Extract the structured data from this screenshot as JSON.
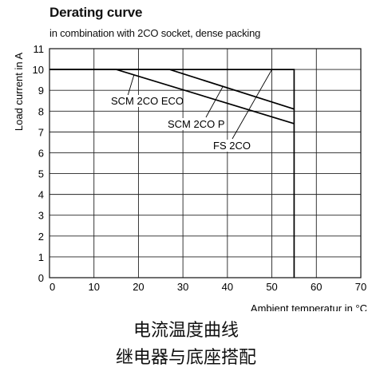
{
  "chart_data": {
    "type": "line",
    "title": "Derating curve",
    "subtitle": "in combination with 2CO socket, dense packing",
    "xlabel": "Ambient temperatur in °C",
    "ylabel": "Load  current in A",
    "xlim": [
      0,
      70
    ],
    "ylim": [
      0,
      11
    ],
    "x_ticks": [
      0,
      10,
      20,
      30,
      40,
      50,
      60,
      70
    ],
    "y_ticks": [
      0,
      1,
      2,
      3,
      4,
      5,
      6,
      7,
      8,
      9,
      10,
      11
    ],
    "grid": true,
    "series": [
      {
        "name": "SCM 2CO ECO",
        "x": [
          0,
          15,
          55
        ],
        "y": [
          10,
          10,
          7.4
        ]
      },
      {
        "name": "SCM 2CO P",
        "x": [
          0,
          27,
          55
        ],
        "y": [
          10,
          10,
          8.1
        ]
      },
      {
        "name": "FS 2CO",
        "x": [
          0,
          55,
          55
        ],
        "y": [
          10,
          10,
          0
        ]
      }
    ],
    "annotations": [
      {
        "text": "SCM 2CO ECO",
        "series": 0,
        "at_x": 19
      },
      {
        "text": "SCM 2CO P",
        "series": 1,
        "at_x": 39
      },
      {
        "text": "FS 2CO",
        "series": 2,
        "at_x": 50
      }
    ]
  },
  "caption": {
    "line1": "电流温度曲线",
    "line2": "继电器与底座搭配"
  }
}
